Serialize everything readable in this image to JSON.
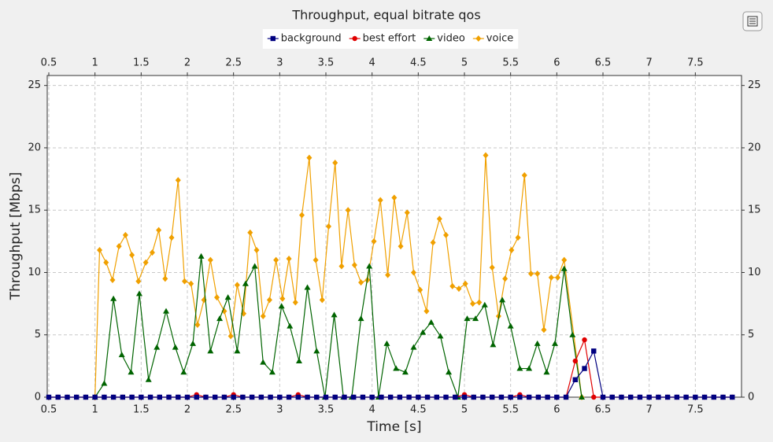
{
  "chart_data": {
    "type": "line",
    "title": "Throughput, equal bitrate qos",
    "x_label": "Time [s]",
    "y_label": "Throughput [Mbps]",
    "xlim": [
      0.5,
      8.0
    ],
    "ylim": [
      0,
      25.8
    ],
    "xticks": [
      0.5,
      1.0,
      1.5,
      2.0,
      2.5,
      3.0,
      3.5,
      4.0,
      4.5,
      5.0,
      5.5,
      6.0,
      6.5,
      7.0,
      7.5
    ],
    "yticks": [
      0,
      5,
      10,
      15,
      20,
      25
    ],
    "grid": true,
    "legend": "top",
    "series": [
      {
        "name": "background",
        "color": "#000080",
        "marker": "square",
        "x": [
          0.5,
          0.6,
          0.7,
          0.8,
          0.9,
          1.0,
          1.1,
          1.2,
          1.3,
          1.4,
          1.5,
          1.6,
          1.7,
          1.8,
          1.9,
          2.0,
          2.1,
          2.2,
          2.3,
          2.4,
          2.5,
          2.6,
          2.7,
          2.8,
          2.9,
          3.0,
          3.1,
          3.2,
          3.3,
          3.4,
          3.5,
          3.6,
          3.7,
          3.8,
          3.9,
          4.0,
          4.1,
          4.2,
          4.3,
          4.4,
          4.5,
          4.6,
          4.7,
          4.8,
          4.9,
          5.0,
          5.1,
          5.2,
          5.3,
          5.4,
          5.5,
          5.6,
          5.7,
          5.8,
          5.9,
          6.0,
          6.1,
          6.2,
          6.3,
          6.4,
          6.5,
          6.6,
          6.7,
          6.8,
          6.9,
          7.0,
          7.1,
          7.2,
          7.3,
          7.4,
          7.5,
          7.6,
          7.7,
          7.8,
          7.9
        ],
        "values": [
          0,
          0,
          0,
          0,
          0,
          0,
          0,
          0,
          0,
          0,
          0,
          0,
          0,
          0,
          0,
          0,
          0,
          0,
          0,
          0,
          0,
          0,
          0,
          0,
          0,
          0,
          0,
          0,
          0,
          0,
          0,
          0,
          0,
          0,
          0,
          0,
          0,
          0,
          0,
          0,
          0,
          0,
          0,
          0,
          0,
          0,
          0,
          0,
          0,
          0,
          0,
          0,
          0,
          0,
          0,
          0,
          0,
          1.4,
          2.3,
          3.7,
          0,
          0,
          0,
          0,
          0,
          0,
          0,
          0,
          0,
          0,
          0,
          0,
          0,
          0,
          0
        ]
      },
      {
        "name": "best effort",
        "color": "#e00000",
        "marker": "circle",
        "x": [
          0.5,
          0.6,
          0.7,
          0.8,
          0.9,
          1.0,
          1.1,
          1.2,
          1.3,
          1.4,
          1.5,
          1.6,
          1.7,
          1.8,
          1.9,
          2.0,
          2.1,
          2.2,
          2.3,
          2.4,
          2.5,
          2.6,
          2.7,
          2.8,
          2.9,
          3.0,
          3.1,
          3.2,
          3.3,
          3.4,
          3.5,
          3.6,
          3.7,
          3.8,
          3.9,
          4.0,
          4.1,
          4.2,
          4.3,
          4.4,
          4.5,
          4.6,
          4.7,
          4.8,
          4.9,
          5.0,
          5.1,
          5.2,
          5.3,
          5.4,
          5.5,
          5.6,
          5.7,
          5.8,
          5.9,
          6.0,
          6.1,
          6.2,
          6.3,
          6.4,
          6.5,
          6.6,
          6.7,
          6.8,
          6.9,
          7.0,
          7.1,
          7.2,
          7.3,
          7.4,
          7.5,
          7.6,
          7.7,
          7.8,
          7.9
        ],
        "values": [
          0,
          0,
          0,
          0,
          0,
          0,
          0,
          0,
          0,
          0,
          0,
          0,
          0,
          0,
          0,
          0,
          0.2,
          0,
          0,
          0,
          0.2,
          0,
          0,
          0,
          0,
          0,
          0,
          0.2,
          0,
          0,
          0,
          0,
          0,
          0,
          0,
          0,
          0,
          0,
          0,
          0,
          0,
          0,
          0,
          0,
          0,
          0.2,
          0,
          0,
          0,
          0,
          0,
          0.2,
          0,
          0,
          0,
          0,
          0,
          2.9,
          4.6,
          0,
          0,
          0,
          0,
          0,
          0,
          0,
          0,
          0,
          0,
          0,
          0,
          0,
          0,
          0,
          0
        ]
      },
      {
        "name": "video",
        "color": "#006400",
        "marker": "triangle",
        "x": [
          1.0,
          1.1,
          1.2,
          1.29,
          1.39,
          1.48,
          1.58,
          1.67,
          1.77,
          1.87,
          1.96,
          2.06,
          2.15,
          2.25,
          2.35,
          2.44,
          2.54,
          2.63,
          2.73,
          2.82,
          2.92,
          3.02,
          3.11,
          3.21,
          3.3,
          3.4,
          3.49,
          3.59,
          3.69,
          3.78,
          3.88,
          3.97,
          4.07,
          4.16,
          4.26,
          4.36,
          4.45,
          4.55,
          4.64,
          4.74,
          4.83,
          4.93,
          5.03,
          5.12,
          5.22,
          5.31,
          5.41,
          5.5,
          5.6,
          5.7,
          5.79,
          5.89,
          5.98,
          6.08,
          6.17,
          6.27
        ],
        "values": [
          0,
          1.1,
          7.9,
          3.4,
          2,
          8.3,
          1.4,
          4,
          6.9,
          4,
          2,
          4.3,
          11.3,
          3.7,
          6.3,
          8,
          3.7,
          9.1,
          10.5,
          2.8,
          2,
          7.3,
          5.7,
          2.9,
          8.8,
          3.7,
          0,
          6.6,
          0,
          0,
          6.3,
          10.5,
          0,
          4.3,
          2.3,
          2,
          4,
          5.2,
          6,
          4.9,
          2,
          0,
          6.3,
          6.3,
          7.4,
          4.2,
          7.8,
          5.7,
          2.3,
          2.3,
          4.3,
          2,
          4.3,
          10.3,
          5,
          0
        ]
      },
      {
        "name": "voice",
        "color": "#f0a000",
        "marker": "diamond",
        "x": [
          1.0,
          1.05,
          1.12,
          1.19,
          1.26,
          1.33,
          1.4,
          1.47,
          1.55,
          1.62,
          1.69,
          1.76,
          1.83,
          1.9,
          1.97,
          2.04,
          2.11,
          2.18,
          2.25,
          2.32,
          2.4,
          2.47,
          2.54,
          2.61,
          2.68,
          2.75,
          2.82,
          2.89,
          2.96,
          3.03,
          3.1,
          3.17,
          3.24,
          3.32,
          3.39,
          3.46,
          3.53,
          3.6,
          3.67,
          3.74,
          3.81,
          3.88,
          3.95,
          4.02,
          4.09,
          4.17,
          4.24,
          4.31,
          4.38,
          4.45,
          4.52,
          4.59,
          4.66,
          4.73,
          4.8,
          4.87,
          4.94,
          5.01,
          5.09,
          5.16,
          5.23,
          5.3,
          5.37,
          5.44,
          5.51,
          5.58,
          5.65,
          5.72,
          5.79,
          5.86,
          5.94,
          6.01,
          6.08,
          6.27
        ],
        "values": [
          0,
          11.8,
          10.8,
          9.4,
          12.1,
          13,
          11.4,
          9.3,
          10.8,
          11.6,
          13.4,
          9.5,
          12.8,
          17.4,
          9.3,
          9.1,
          5.8,
          7.8,
          11,
          8,
          6.9,
          4.9,
          9,
          6.7,
          13.2,
          11.8,
          6.5,
          7.8,
          11,
          7.9,
          11.1,
          7.6,
          14.6,
          19.2,
          11,
          7.8,
          13.7,
          18.8,
          10.5,
          15,
          10.6,
          9.2,
          9.4,
          12.5,
          15.8,
          9.8,
          16,
          12.1,
          14.8,
          10,
          8.6,
          6.9,
          12.4,
          14.3,
          13,
          8.9,
          8.7,
          9.1,
          7.5,
          7.6,
          19.4,
          10.4,
          6.5,
          9.5,
          11.8,
          12.8,
          17.8,
          9.9,
          9.9,
          5.4,
          9.6,
          9.6,
          11,
          0
        ]
      }
    ]
  }
}
